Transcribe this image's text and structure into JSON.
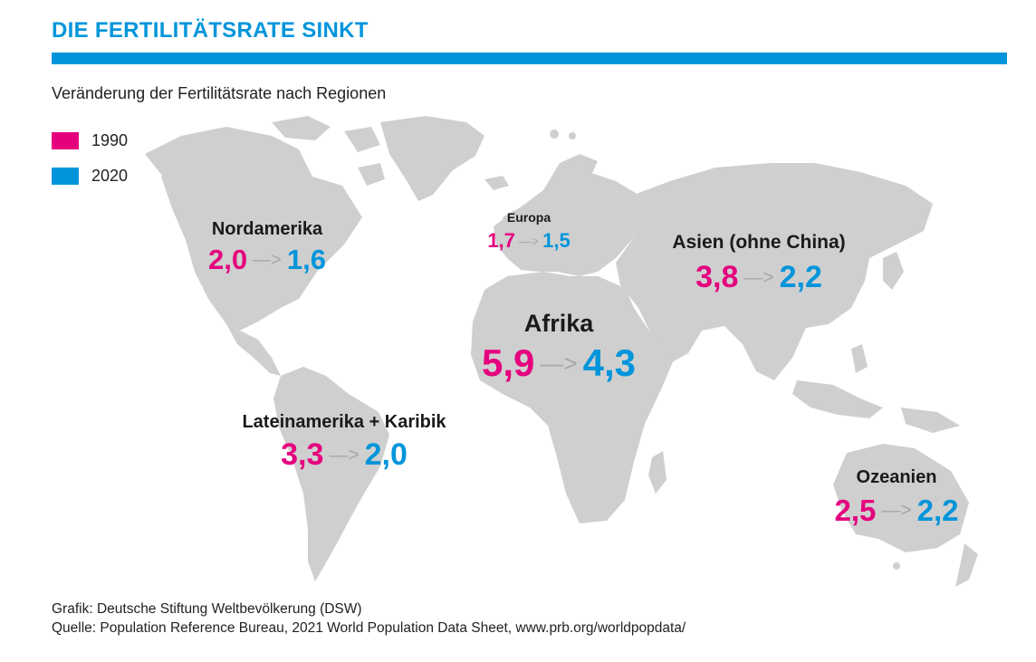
{
  "title": "DIE FERTILITÄTSRATE SINKT",
  "subtitle": "Veränderung der Fertilitätsrate nach Regionen",
  "colors": {
    "accent": "#0095db",
    "year_1990": "#e5007e",
    "year_2020": "#0095db",
    "land": "#cfcfcf",
    "arrow": "#a8a8a8"
  },
  "legend": [
    {
      "label": "1990",
      "color": "#e5007e"
    },
    {
      "label": "2020",
      "color": "#0095db"
    }
  ],
  "arrow_symbol": "—>",
  "regions": [
    {
      "name": "Nordamerika",
      "v1990": "2,0",
      "v2020": "1,6"
    },
    {
      "name": "Europa",
      "v1990": "1,7",
      "v2020": "1,5"
    },
    {
      "name": "Asien (ohne China)",
      "v1990": "3,8",
      "v2020": "2,2"
    },
    {
      "name": "Afrika",
      "v1990": "5,9",
      "v2020": "4,3"
    },
    {
      "name": "Lateinamerika + Karibik",
      "v1990": "3,3",
      "v2020": "2,0"
    },
    {
      "name": "Ozeanien",
      "v1990": "2,5",
      "v2020": "2,2"
    }
  ],
  "footer": {
    "credit": "Grafik: Deutsche Stiftung Weltbevölkerung (DSW)",
    "source": "Quelle: Population Reference Bureau, 2021 World Population Data Sheet, www.prb.org/worldpopdata/"
  }
}
